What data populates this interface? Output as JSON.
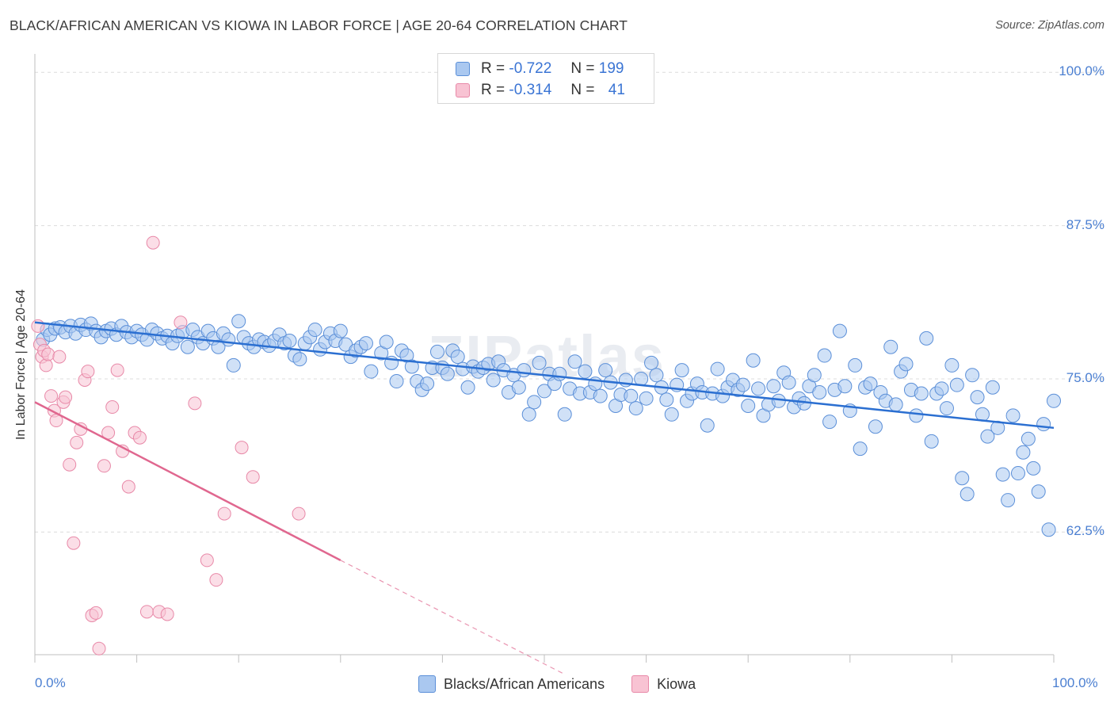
{
  "title": "BLACK/AFRICAN AMERICAN VS KIOWA IN LABOR FORCE | AGE 20-64 CORRELATION CHART",
  "source": "Source: ZipAtlas.com",
  "watermark": "ZIPatlas",
  "legend": {
    "rows": [
      {
        "r_label": "R =",
        "r_value": "-0.722",
        "n_label": "N =",
        "n_value": "199"
      },
      {
        "r_label": "R =",
        "r_value": "-0.314",
        "n_label": "N =",
        "n_value": "41"
      }
    ]
  },
  "colors": {
    "blue_fill": "#aac8f0",
    "blue_stroke": "#5b8fd8",
    "blue_line": "#2b6fd1",
    "pink_fill": "#f8c3d3",
    "pink_stroke": "#e889a8",
    "pink_line": "#e0678f",
    "tick_text": "#4b7fd1",
    "grid": "#dcdcdc"
  },
  "chart_data": {
    "type": "scatter",
    "ylabel": "In Labor Force | Age 20-64",
    "xlim": [
      0,
      100
    ],
    "ylim": [
      52.5,
      101.5
    ],
    "x_ticks": [
      "0.0%",
      "100.0%"
    ],
    "y_ticks": [
      {
        "value": 100.0,
        "label": "100.0%"
      },
      {
        "value": 87.5,
        "label": "87.5%"
      },
      {
        "value": 75.0,
        "label": "75.0%"
      },
      {
        "value": 62.5,
        "label": "62.5%"
      }
    ],
    "legend_position": "top-center",
    "series": [
      {
        "name": "Blacks/African Americans",
        "r": -0.722,
        "n": 199,
        "trend": {
          "x": [
            0,
            100
          ],
          "y": [
            79.6,
            71.0
          ],
          "dashed_from": null
        },
        "points": [
          [
            0.8,
            78.2
          ],
          [
            1.2,
            79
          ],
          [
            1.5,
            78.6
          ],
          [
            2.0,
            79.1
          ],
          [
            2.5,
            79.2
          ],
          [
            3.0,
            78.8
          ],
          [
            3.5,
            79.3
          ],
          [
            4.0,
            78.7
          ],
          [
            4.5,
            79.4
          ],
          [
            5.0,
            79
          ],
          [
            5.5,
            79.5
          ],
          [
            6.0,
            78.9
          ],
          [
            6.5,
            78.4
          ],
          [
            7.0,
            78.9
          ],
          [
            7.5,
            79.1
          ],
          [
            8.0,
            78.6
          ],
          [
            8.5,
            79.3
          ],
          [
            9.0,
            78.8
          ],
          [
            9.5,
            78.4
          ],
          [
            10.0,
            78.9
          ],
          [
            10.5,
            78.6
          ],
          [
            11.0,
            78.2
          ],
          [
            11.5,
            79.0
          ],
          [
            12.0,
            78.7
          ],
          [
            12.5,
            78.3
          ],
          [
            13.0,
            78.5
          ],
          [
            13.5,
            77.9
          ],
          [
            14.0,
            78.5
          ],
          [
            14.5,
            78.8
          ],
          [
            15.0,
            77.6
          ],
          [
            15.5,
            79
          ],
          [
            16.0,
            78.4
          ],
          [
            16.5,
            77.9
          ],
          [
            17.0,
            78.9
          ],
          [
            17.5,
            78.3
          ],
          [
            18.0,
            77.6
          ],
          [
            18.5,
            78.7
          ],
          [
            19.0,
            78.2
          ],
          [
            19.5,
            76.1
          ],
          [
            20.0,
            79.7
          ],
          [
            20.5,
            78.4
          ],
          [
            21.0,
            77.9
          ],
          [
            21.5,
            77.6
          ],
          [
            22.0,
            78.2
          ],
          [
            22.5,
            78.0
          ],
          [
            23.0,
            77.7
          ],
          [
            23.5,
            78.1
          ],
          [
            24.0,
            78.6
          ],
          [
            24.5,
            77.9
          ],
          [
            25.0,
            78.1
          ],
          [
            25.5,
            76.9
          ],
          [
            26.0,
            76.6
          ],
          [
            26.5,
            77.9
          ],
          [
            27.0,
            78.4
          ],
          [
            27.5,
            79.0
          ],
          [
            28.0,
            77.4
          ],
          [
            28.5,
            78.0
          ],
          [
            29.0,
            78.7
          ],
          [
            29.5,
            78.1
          ],
          [
            30.0,
            78.9
          ],
          [
            30.5,
            77.8
          ],
          [
            31.0,
            76.8
          ],
          [
            31.5,
            77.3
          ],
          [
            32.0,
            77.6
          ],
          [
            32.5,
            77.9
          ],
          [
            33.0,
            75.6
          ],
          [
            34.0,
            77.1
          ],
          [
            34.5,
            78.0
          ],
          [
            35.0,
            76.3
          ],
          [
            35.5,
            74.8
          ],
          [
            36.0,
            77.3
          ],
          [
            36.5,
            76.9
          ],
          [
            37.0,
            76.0
          ],
          [
            37.5,
            74.8
          ],
          [
            38.0,
            74.1
          ],
          [
            38.5,
            74.6
          ],
          [
            39.0,
            75.9
          ],
          [
            39.5,
            77.2
          ],
          [
            40.0,
            75.9
          ],
          [
            40.5,
            75.4
          ],
          [
            41.0,
            77.3
          ],
          [
            41.5,
            76.8
          ],
          [
            42.0,
            75.8
          ],
          [
            42.5,
            74.3
          ],
          [
            43.0,
            76.0
          ],
          [
            43.5,
            75.6
          ],
          [
            44.0,
            75.9
          ],
          [
            44.5,
            76.2
          ],
          [
            45.0,
            74.9
          ],
          [
            45.5,
            76.4
          ],
          [
            46.0,
            75.7
          ],
          [
            46.5,
            73.9
          ],
          [
            47.0,
            75.3
          ],
          [
            47.5,
            74.3
          ],
          [
            48.0,
            75.7
          ],
          [
            48.5,
            72.1
          ],
          [
            49.0,
            73.1
          ],
          [
            49.5,
            76.3
          ],
          [
            50.0,
            74.0
          ],
          [
            50.5,
            75.4
          ],
          [
            51.0,
            74.6
          ],
          [
            51.5,
            75.4
          ],
          [
            52.0,
            72.1
          ],
          [
            52.5,
            74.2
          ],
          [
            53.0,
            76.4
          ],
          [
            53.5,
            73.8
          ],
          [
            54.0,
            75.6
          ],
          [
            54.5,
            73.9
          ],
          [
            55.0,
            74.6
          ],
          [
            55.5,
            73.6
          ],
          [
            56.0,
            75.7
          ],
          [
            56.5,
            74.7
          ],
          [
            57.0,
            72.8
          ],
          [
            57.5,
            73.7
          ],
          [
            58.0,
            74.9
          ],
          [
            58.5,
            73.6
          ],
          [
            59.0,
            72.6
          ],
          [
            59.5,
            75.0
          ],
          [
            60.0,
            73.4
          ],
          [
            60.5,
            76.3
          ],
          [
            61.0,
            75.3
          ],
          [
            61.5,
            74.3
          ],
          [
            62.0,
            73.3
          ],
          [
            62.5,
            72.1
          ],
          [
            63.0,
            74.5
          ],
          [
            63.5,
            75.7
          ],
          [
            64.0,
            73.2
          ],
          [
            64.5,
            73.8
          ],
          [
            65.0,
            74.6
          ],
          [
            65.5,
            73.9
          ],
          [
            66.0,
            71.2
          ],
          [
            66.5,
            73.8
          ],
          [
            67.0,
            75.8
          ],
          [
            67.5,
            73.6
          ],
          [
            68.0,
            74.3
          ],
          [
            68.5,
            74.9
          ],
          [
            69.0,
            74.1
          ],
          [
            69.5,
            74.5
          ],
          [
            70.0,
            72.8
          ],
          [
            70.5,
            76.5
          ],
          [
            71.0,
            74.2
          ],
          [
            71.5,
            72.0
          ],
          [
            72.0,
            72.9
          ],
          [
            72.5,
            74.4
          ],
          [
            73.0,
            73.2
          ],
          [
            73.5,
            75.5
          ],
          [
            74.0,
            74.7
          ],
          [
            74.5,
            72.7
          ],
          [
            75.0,
            73.4
          ],
          [
            75.5,
            73.0
          ],
          [
            76.0,
            74.4
          ],
          [
            76.5,
            75.3
          ],
          [
            77.0,
            73.9
          ],
          [
            77.5,
            76.9
          ],
          [
            78.0,
            71.5
          ],
          [
            78.5,
            74.1
          ],
          [
            79.0,
            78.9
          ],
          [
            79.5,
            74.4
          ],
          [
            80.0,
            72.4
          ],
          [
            80.5,
            76.1
          ],
          [
            81.0,
            69.3
          ],
          [
            81.5,
            74.3
          ],
          [
            82.0,
            74.6
          ],
          [
            82.5,
            71.1
          ],
          [
            83.0,
            73.9
          ],
          [
            83.5,
            73.2
          ],
          [
            84.0,
            77.6
          ],
          [
            84.5,
            72.9
          ],
          [
            85.0,
            75.6
          ],
          [
            85.5,
            76.2
          ],
          [
            86.0,
            74.1
          ],
          [
            86.5,
            72.0
          ],
          [
            87.0,
            73.8
          ],
          [
            87.5,
            78.3
          ],
          [
            88.0,
            69.9
          ],
          [
            88.5,
            73.8
          ],
          [
            89.0,
            74.2
          ],
          [
            89.5,
            72.6
          ],
          [
            90.0,
            76.1
          ],
          [
            90.5,
            74.5
          ],
          [
            91.0,
            66.9
          ],
          [
            91.5,
            65.6
          ],
          [
            92.0,
            75.3
          ],
          [
            92.5,
            73.5
          ],
          [
            93.0,
            72.1
          ],
          [
            93.5,
            70.3
          ],
          [
            94.0,
            74.3
          ],
          [
            94.5,
            71.0
          ],
          [
            95.0,
            67.2
          ],
          [
            95.5,
            65.1
          ],
          [
            96.0,
            72.0
          ],
          [
            96.5,
            67.3
          ],
          [
            97.0,
            69.0
          ],
          [
            97.5,
            70.1
          ],
          [
            98.0,
            67.7
          ],
          [
            98.5,
            65.8
          ],
          [
            99.0,
            71.3
          ],
          [
            99.5,
            62.7
          ],
          [
            100.0,
            73.2
          ]
        ]
      },
      {
        "name": "Kiowa",
        "r": -0.314,
        "n": 41,
        "trend": {
          "x": [
            0,
            30,
            52
          ],
          "y": [
            73.1,
            60.2,
            50.9
          ],
          "dashed_from": 30
        },
        "points": [
          [
            0.3,
            79.3
          ],
          [
            0.5,
            77.8
          ],
          [
            0.7,
            76.8
          ],
          [
            0.9,
            77.3
          ],
          [
            1.1,
            76.1
          ],
          [
            1.3,
            77.0
          ],
          [
            1.6,
            73.6
          ],
          [
            1.9,
            72.4
          ],
          [
            2.1,
            71.6
          ],
          [
            2.4,
            76.8
          ],
          [
            2.8,
            73.1
          ],
          [
            3.0,
            73.5
          ],
          [
            3.4,
            68.0
          ],
          [
            3.8,
            61.6
          ],
          [
            4.1,
            69.8
          ],
          [
            4.5,
            70.9
          ],
          [
            4.9,
            74.9
          ],
          [
            5.2,
            75.6
          ],
          [
            5.6,
            55.7
          ],
          [
            6.0,
            55.9
          ],
          [
            6.3,
            53.0
          ],
          [
            6.8,
            67.9
          ],
          [
            7.2,
            70.6
          ],
          [
            7.6,
            72.7
          ],
          [
            8.1,
            75.7
          ],
          [
            8.6,
            69.1
          ],
          [
            9.2,
            66.2
          ],
          [
            9.8,
            70.6
          ],
          [
            10.3,
            70.2
          ],
          [
            11.0,
            56.0
          ],
          [
            11.6,
            86.1
          ],
          [
            12.2,
            56.0
          ],
          [
            13.0,
            55.8
          ],
          [
            14.3,
            79.6
          ],
          [
            15.7,
            73.0
          ],
          [
            16.9,
            60.2
          ],
          [
            17.8,
            58.6
          ],
          [
            18.6,
            64.0
          ],
          [
            20.3,
            69.4
          ],
          [
            21.4,
            67.0
          ],
          [
            25.9,
            64.0
          ]
        ]
      }
    ]
  }
}
